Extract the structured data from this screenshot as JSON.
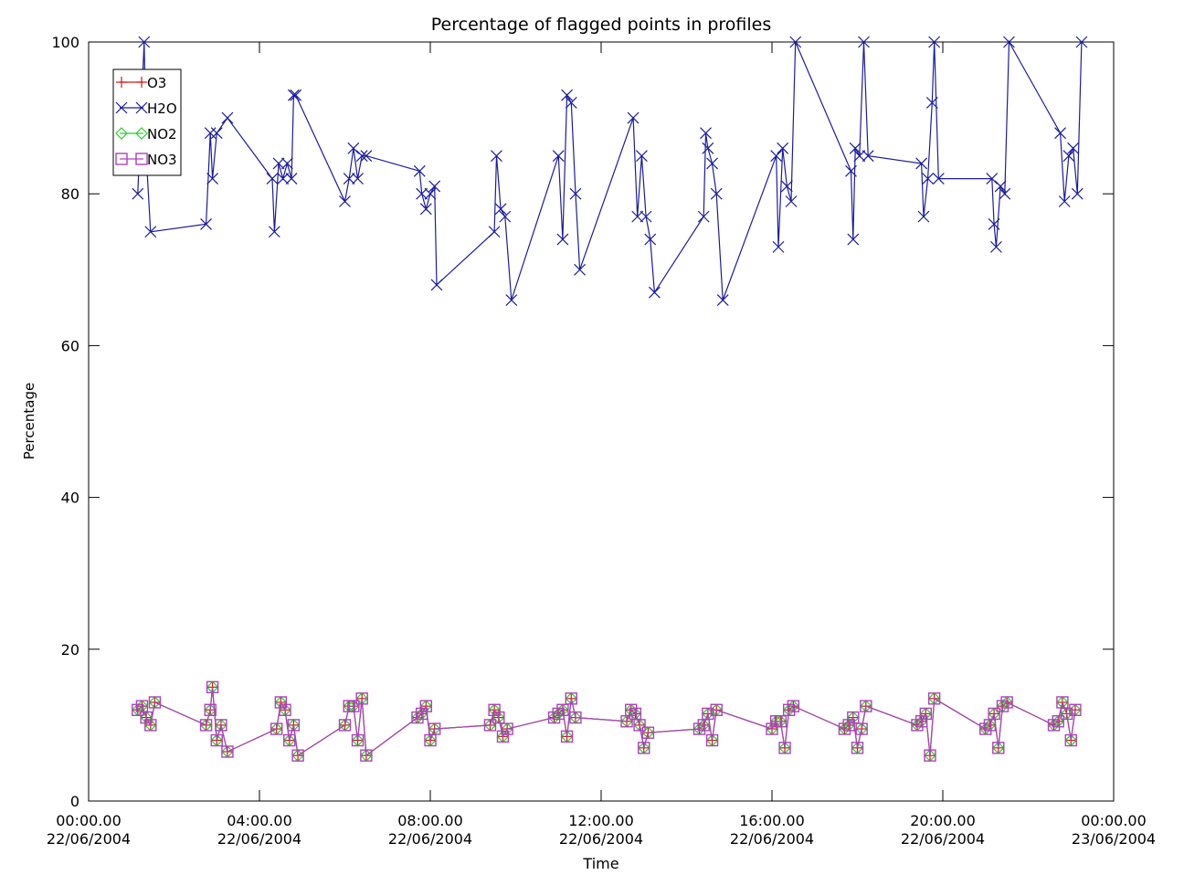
{
  "chart_data": {
    "type": "line",
    "title": "Percentage of flagged points in profiles",
    "xlabel": "Time",
    "ylabel": "Percentage",
    "xlim": [
      0,
      24
    ],
    "ylim": [
      0,
      100
    ],
    "yticks": [
      0,
      20,
      40,
      60,
      80,
      100
    ],
    "xticks": [
      {
        "x": 0,
        "l1": "00:00.00",
        "l2": "22/06/2004"
      },
      {
        "x": 4,
        "l1": "04:00.00",
        "l2": "22/06/2004"
      },
      {
        "x": 8,
        "l1": "08:00.00",
        "l2": "22/06/2004"
      },
      {
        "x": 12,
        "l1": "12:00.00",
        "l2": "22/06/2004"
      },
      {
        "x": 16,
        "l1": "16:00.00",
        "l2": "22/06/2004"
      },
      {
        "x": 20,
        "l1": "20:00.00",
        "l2": "22/06/2004"
      },
      {
        "x": 24,
        "l1": "00:00.00",
        "l2": "23/06/2004"
      }
    ],
    "legend_position": "top-left",
    "series": [
      {
        "name": "H2O",
        "color": "#1c1ca0",
        "marker": "x",
        "x": [
          1.15,
          1.3,
          1.35,
          1.45,
          2.75,
          2.85,
          2.9,
          3.0,
          3.25,
          4.3,
          4.35,
          4.45,
          4.55,
          4.65,
          4.75,
          4.8,
          4.85,
          6.0,
          6.1,
          6.2,
          6.3,
          6.4,
          6.5,
          7.75,
          7.8,
          7.9,
          8.0,
          8.1,
          8.15,
          9.5,
          9.55,
          9.65,
          9.75,
          9.9,
          11.0,
          11.1,
          11.2,
          11.3,
          11.4,
          11.5,
          12.75,
          12.85,
          12.95,
          13.05,
          13.15,
          13.25,
          14.4,
          14.45,
          14.5,
          14.6,
          14.7,
          14.85,
          16.1,
          16.15,
          16.25,
          16.35,
          16.45,
          16.55,
          17.85,
          17.9,
          17.95,
          18.05,
          18.15,
          18.25,
          19.5,
          19.55,
          19.65,
          19.75,
          19.8,
          19.9,
          21.15,
          21.2,
          21.25,
          21.35,
          21.45,
          21.55,
          22.75,
          22.85,
          22.95,
          23.05,
          23.15,
          23.25
        ],
        "y": [
          80,
          100,
          85,
          75,
          76,
          88,
          82,
          88,
          90,
          82,
          75,
          84,
          82,
          84,
          82,
          93,
          93,
          79,
          82,
          86,
          82,
          85,
          85,
          83,
          80,
          78,
          80,
          81,
          68,
          75,
          85,
          78,
          77,
          66,
          85,
          74,
          93,
          92,
          80,
          70,
          90,
          77,
          85,
          77,
          74,
          67,
          77,
          88,
          86,
          84,
          80,
          66,
          85,
          73,
          86,
          81,
          79,
          100,
          83,
          74,
          86,
          85,
          100,
          85,
          84,
          77,
          82,
          92,
          100,
          82,
          82,
          76,
          73,
          81,
          80,
          100,
          88,
          79,
          85,
          86,
          80,
          100
        ]
      },
      {
        "name": "O3",
        "color": "#d01818",
        "marker": "plus",
        "x": [
          1.15,
          1.25,
          1.35,
          1.45,
          1.55,
          2.75,
          2.85,
          2.9,
          3.0,
          3.1,
          3.25,
          4.4,
          4.5,
          4.6,
          4.7,
          4.8,
          4.9,
          6.0,
          6.1,
          6.2,
          6.3,
          6.4,
          6.5,
          7.7,
          7.8,
          7.9,
          8.0,
          8.1,
          9.4,
          9.5,
          9.6,
          9.7,
          9.8,
          10.9,
          11.0,
          11.1,
          11.2,
          11.3,
          11.4,
          12.6,
          12.7,
          12.8,
          12.9,
          13.0,
          13.1,
          14.3,
          14.4,
          14.5,
          14.6,
          14.7,
          16.0,
          16.1,
          16.2,
          16.3,
          16.4,
          16.5,
          17.7,
          17.8,
          17.9,
          18.0,
          18.1,
          18.2,
          19.4,
          19.5,
          19.6,
          19.7,
          19.8,
          21.0,
          21.1,
          21.2,
          21.3,
          21.4,
          21.5,
          22.6,
          22.7,
          22.8,
          22.9,
          23.0,
          23.1
        ],
        "y": [
          12,
          12.5,
          11,
          10,
          13,
          10,
          12,
          15,
          8,
          10,
          6.5,
          9.5,
          13,
          12,
          8,
          10,
          6,
          10,
          12.5,
          12.5,
          8,
          13.5,
          6,
          11,
          11.5,
          12.5,
          8,
          9.5,
          10,
          12,
          11,
          8.5,
          9.5,
          11,
          11.5,
          12,
          8.5,
          13.5,
          11,
          10.5,
          12,
          11.5,
          10,
          7,
          9,
          9.5,
          10,
          11.5,
          8,
          12,
          9.5,
          10.5,
          10.5,
          7,
          12,
          12.5,
          9.5,
          10,
          11,
          7,
          9.5,
          12.5,
          10,
          10.5,
          11.5,
          6,
          13.5,
          9.5,
          10,
          11.5,
          7,
          12.5,
          13,
          10,
          10.5,
          13,
          11.5,
          8,
          12
        ]
      },
      {
        "name": "NO2",
        "color": "#2ecc2e",
        "marker": "diamond",
        "x": [
          1.15,
          1.25,
          1.35,
          1.45,
          1.55,
          2.75,
          2.85,
          2.9,
          3.0,
          3.1,
          3.25,
          4.4,
          4.5,
          4.6,
          4.7,
          4.8,
          4.9,
          6.0,
          6.1,
          6.2,
          6.3,
          6.4,
          6.5,
          7.7,
          7.8,
          7.9,
          8.0,
          8.1,
          9.4,
          9.5,
          9.6,
          9.7,
          9.8,
          10.9,
          11.0,
          11.1,
          11.2,
          11.3,
          11.4,
          12.6,
          12.7,
          12.8,
          12.9,
          13.0,
          13.1,
          14.3,
          14.4,
          14.5,
          14.6,
          14.7,
          16.0,
          16.1,
          16.2,
          16.3,
          16.4,
          16.5,
          17.7,
          17.8,
          17.9,
          18.0,
          18.1,
          18.2,
          19.4,
          19.5,
          19.6,
          19.7,
          19.8,
          21.0,
          21.1,
          21.2,
          21.3,
          21.4,
          21.5,
          22.6,
          22.7,
          22.8,
          22.9,
          23.0,
          23.1
        ],
        "y": [
          12,
          12.5,
          11,
          10,
          13,
          10,
          12,
          15,
          8,
          10,
          6.5,
          9.5,
          13,
          12,
          8,
          10,
          6,
          10,
          12.5,
          12.5,
          8,
          13.5,
          6,
          11,
          11.5,
          12.5,
          8,
          9.5,
          10,
          12,
          11,
          8.5,
          9.5,
          11,
          11.5,
          12,
          8.5,
          13.5,
          11,
          10.5,
          12,
          11.5,
          10,
          7,
          9,
          9.5,
          10,
          11.5,
          8,
          12,
          9.5,
          10.5,
          10.5,
          7,
          12,
          12.5,
          9.5,
          10,
          11,
          7,
          9.5,
          12.5,
          10,
          10.5,
          11.5,
          6,
          13.5,
          9.5,
          10,
          11.5,
          7,
          12.5,
          13,
          10,
          10.5,
          13,
          11.5,
          8,
          12
        ]
      },
      {
        "name": "NO3",
        "color": "#b040c0",
        "marker": "square",
        "x": [
          1.15,
          1.25,
          1.35,
          1.45,
          1.55,
          2.75,
          2.85,
          2.9,
          3.0,
          3.1,
          3.25,
          4.4,
          4.5,
          4.6,
          4.7,
          4.8,
          4.9,
          6.0,
          6.1,
          6.2,
          6.3,
          6.4,
          6.5,
          7.7,
          7.8,
          7.9,
          8.0,
          8.1,
          9.4,
          9.5,
          9.6,
          9.7,
          9.8,
          10.9,
          11.0,
          11.1,
          11.2,
          11.3,
          11.4,
          12.6,
          12.7,
          12.8,
          12.9,
          13.0,
          13.1,
          14.3,
          14.4,
          14.5,
          14.6,
          14.7,
          16.0,
          16.1,
          16.2,
          16.3,
          16.4,
          16.5,
          17.7,
          17.8,
          17.9,
          18.0,
          18.1,
          18.2,
          19.4,
          19.5,
          19.6,
          19.7,
          19.8,
          21.0,
          21.1,
          21.2,
          21.3,
          21.4,
          21.5,
          22.6,
          22.7,
          22.8,
          22.9,
          23.0,
          23.1
        ],
        "y": [
          12,
          12.5,
          11,
          10,
          13,
          10,
          12,
          15,
          8,
          10,
          6.5,
          9.5,
          13,
          12,
          8,
          10,
          6,
          10,
          12.5,
          12.5,
          8,
          13.5,
          6,
          11,
          11.5,
          12.5,
          8,
          9.5,
          10,
          12,
          11,
          8.5,
          9.5,
          11,
          11.5,
          12,
          8.5,
          13.5,
          11,
          10.5,
          12,
          11.5,
          10,
          7,
          9,
          9.5,
          10,
          11.5,
          8,
          12,
          9.5,
          10.5,
          10.5,
          7,
          12,
          12.5,
          9.5,
          10,
          11,
          7,
          9.5,
          12.5,
          10,
          10.5,
          11.5,
          6,
          13.5,
          9.5,
          10,
          11.5,
          7,
          12.5,
          13,
          10,
          10.5,
          13,
          11.5,
          8,
          12
        ]
      }
    ],
    "legend": [
      {
        "label": "O3",
        "series": "O3"
      },
      {
        "label": "H2O",
        "series": "H2O"
      },
      {
        "label": "NO2",
        "series": "NO2"
      },
      {
        "label": "NO3",
        "series": "NO3"
      }
    ]
  }
}
